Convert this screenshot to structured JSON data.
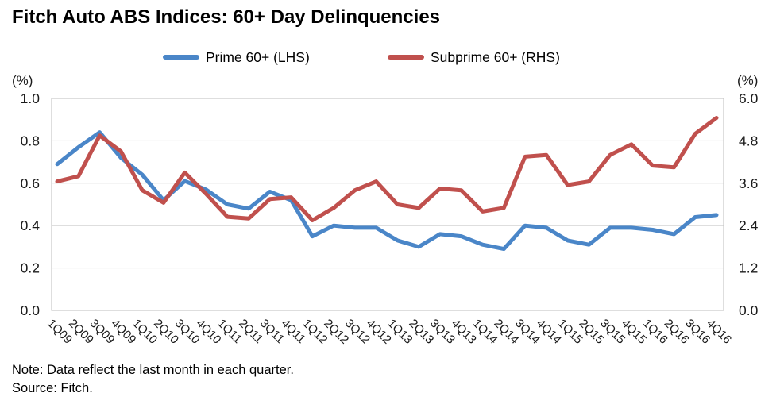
{
  "title": "Fitch Auto ABS Indices: 60+ Day Delinquencies",
  "unit_left": "(%)",
  "unit_right": "(%)",
  "legend": [
    {
      "label": "Prime 60+ (LHS)",
      "color": "#4a86c8"
    },
    {
      "label": "Subprime 60+ (RHS)",
      "color": "#c0504d"
    }
  ],
  "note": {
    "line1": "Note: Data reflect the last month in each quarter.",
    "line2": "Source: Fitch."
  },
  "chart_data": {
    "type": "line",
    "title": "Fitch Auto ABS Indices: 60+ Day Delinquencies",
    "categories": [
      "1Q09",
      "2Q09",
      "3Q09",
      "4Q09",
      "1Q10",
      "2Q10",
      "3Q10",
      "4Q10",
      "1Q11",
      "2Q11",
      "3Q11",
      "4Q11",
      "1Q12",
      "2Q12",
      "3Q12",
      "4Q12",
      "1Q13",
      "2Q13",
      "3Q13",
      "4Q13",
      "1Q14",
      "2Q14",
      "3Q14",
      "4Q14",
      "1Q15",
      "2Q15",
      "3Q15",
      "4Q15",
      "1Q16",
      "2Q16",
      "3Q16",
      "4Q16"
    ],
    "series": [
      {
        "name": "Prime 60+ (LHS)",
        "axis": "left",
        "color": "#4a86c8",
        "values": [
          0.69,
          0.77,
          0.84,
          0.72,
          0.64,
          0.52,
          0.61,
          0.57,
          0.5,
          0.48,
          0.56,
          0.52,
          0.35,
          0.4,
          0.39,
          0.39,
          0.33,
          0.3,
          0.36,
          0.35,
          0.31,
          0.29,
          0.4,
          0.39,
          0.33,
          0.31,
          0.39,
          0.39,
          0.38,
          0.36,
          0.44,
          0.45
        ]
      },
      {
        "name": "Subprime 60+ (RHS)",
        "axis": "right",
        "color": "#c0504d",
        "values": [
          3.65,
          3.8,
          4.95,
          4.5,
          3.4,
          3.05,
          3.9,
          3.3,
          2.65,
          2.6,
          3.15,
          3.2,
          2.55,
          2.9,
          3.4,
          3.65,
          3.0,
          2.9,
          3.45,
          3.4,
          2.8,
          2.9,
          4.35,
          4.4,
          3.55,
          3.65,
          4.4,
          4.7,
          4.1,
          4.05,
          5.0,
          5.45
        ]
      }
    ],
    "left_axis": {
      "label": "(%)",
      "min": 0.0,
      "max": 1.0,
      "ticks": [
        "1.0",
        "0.8",
        "0.6",
        "0.4",
        "0.2",
        "0.0"
      ]
    },
    "right_axis": {
      "label": "(%)",
      "min": 0.0,
      "max": 6.0,
      "ticks": [
        "6.0",
        "4.8",
        "3.6",
        "2.4",
        "1.2",
        "0.0"
      ]
    },
    "grid": true,
    "legend_position": "top",
    "grid_color": "#d3d3d3",
    "border_color": "#c8c8c8",
    "tick_font_color": "#1a1a1a"
  }
}
